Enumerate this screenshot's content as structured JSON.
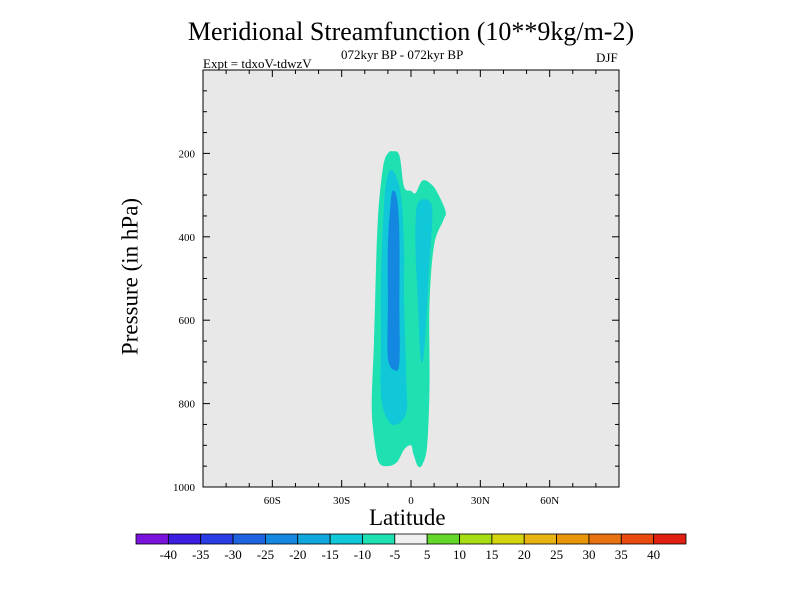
{
  "chart_data": {
    "type": "contour",
    "title": "Meridional Streamfunction (10**9kg/m-2)",
    "subtitle": "072kyr BP - 072kyr BP",
    "left_label": "Expt = tdxoV-tdwzV",
    "right_label": "DJF",
    "xlabel": "Latitude",
    "ylabel": "Pressure (in hPa)",
    "xlim": [
      -90,
      90
    ],
    "ylim": [
      0,
      1000
    ],
    "y_inverted": true,
    "x_ticks": [
      {
        "value": -60,
        "label": "60S"
      },
      {
        "value": -30,
        "label": "30S"
      },
      {
        "value": 0,
        "label": "0"
      },
      {
        "value": 30,
        "label": "30N"
      },
      {
        "value": 60,
        "label": "60N"
      }
    ],
    "y_ticks": [
      {
        "value": 200,
        "label": "200"
      },
      {
        "value": 400,
        "label": "400"
      },
      {
        "value": 600,
        "label": "600"
      },
      {
        "value": 800,
        "label": "800"
      },
      {
        "value": 1000,
        "label": "1000"
      }
    ],
    "background_color": "#e8e8e8",
    "contour_levels": [
      -40,
      -35,
      -30,
      -25,
      -20,
      -15,
      -10,
      -5,
      5,
      10,
      15,
      20,
      25,
      30,
      35,
      40
    ],
    "colorbar_colors": [
      "#7a14dc",
      "#3c1ee0",
      "#2a3ce4",
      "#1e64e0",
      "#1488e0",
      "#10a8dc",
      "#10c8d8",
      "#1ee0b0",
      "#f0f0f0",
      "#64d82a",
      "#a8dc14",
      "#d4d410",
      "#e8b414",
      "#e8960a",
      "#e87210",
      "#e84a10",
      "#e02010"
    ],
    "colorbar_labels": [
      "-40",
      "-35",
      "-30",
      "-25",
      "-20",
      "-15",
      "-10",
      "-5",
      "5",
      "10",
      "15",
      "20",
      "25",
      "30",
      "35",
      "40"
    ],
    "regions": [
      {
        "level": "-10 to -5",
        "color": "#1ee0b0",
        "outline": [
          [
            -8,
            195
          ],
          [
            -5,
            205
          ],
          [
            -3,
            280
          ],
          [
            0,
            290
          ],
          [
            2,
            295
          ],
          [
            5,
            265
          ],
          [
            9,
            275
          ],
          [
            12,
            300
          ],
          [
            15,
            340
          ],
          [
            14,
            360
          ],
          [
            10,
            420
          ],
          [
            8,
            560
          ],
          [
            8,
            760
          ],
          [
            7,
            900
          ],
          [
            5,
            945
          ],
          [
            3,
            950
          ],
          [
            1,
            920
          ],
          [
            0,
            900
          ],
          [
            -3,
            910
          ],
          [
            -6,
            940
          ],
          [
            -10,
            950
          ],
          [
            -14,
            940
          ],
          [
            -16,
            880
          ],
          [
            -17,
            800
          ],
          [
            -16,
            650
          ],
          [
            -15,
            450
          ],
          [
            -14,
            330
          ],
          [
            -12,
            230
          ],
          [
            -10,
            200
          ]
        ]
      },
      {
        "level": "-15 to -10",
        "color": "#10c8d8",
        "outline": [
          [
            -9,
            240
          ],
          [
            -6,
            260
          ],
          [
            -4,
            320
          ],
          [
            -3,
            430
          ],
          [
            -3,
            560
          ],
          [
            -2,
            750
          ],
          [
            -2,
            820
          ],
          [
            -6,
            850
          ],
          [
            -10,
            840
          ],
          [
            -13,
            780
          ],
          [
            -13,
            650
          ],
          [
            -13,
            500
          ],
          [
            -12,
            360
          ],
          [
            -11,
            280
          ]
        ]
      },
      {
        "level": "-15 to -10",
        "color": "#10c8d8",
        "outline": [
          [
            3,
            320
          ],
          [
            6,
            310
          ],
          [
            9,
            325
          ],
          [
            9,
            380
          ],
          [
            8,
            460
          ],
          [
            7,
            560
          ],
          [
            6,
            650
          ],
          [
            5,
            700
          ],
          [
            4,
            680
          ],
          [
            3,
            560
          ],
          [
            2,
            440
          ],
          [
            2,
            360
          ]
        ]
      },
      {
        "level": "-20 to -15",
        "color": "#1488e0",
        "outline": [
          [
            -8,
            290
          ],
          [
            -6,
            310
          ],
          [
            -5,
            400
          ],
          [
            -5,
            560
          ],
          [
            -5,
            700
          ],
          [
            -7,
            720
          ],
          [
            -10,
            690
          ],
          [
            -10,
            560
          ],
          [
            -10,
            420
          ],
          [
            -9,
            330
          ]
        ]
      }
    ]
  }
}
